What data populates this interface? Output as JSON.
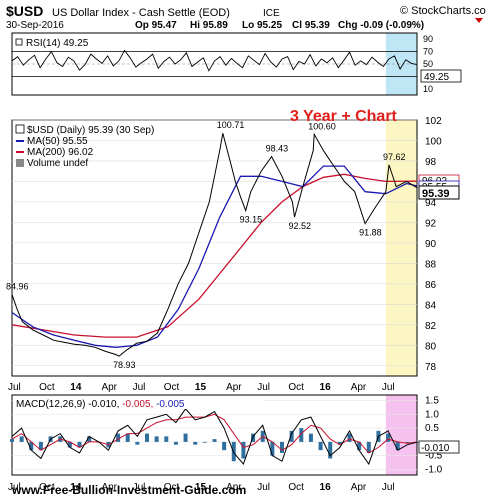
{
  "header": {
    "symbol": "$USD",
    "name": "US Dollar Index - Cash Settle (EOD)",
    "exchange": "ICE",
    "brand": "© StockCharts.com",
    "date": "30-Sep-2016",
    "op": "Op 95.47",
    "hi": "Hi 95.89",
    "lo": "Lo 95.25",
    "cl": "Cl 95.39",
    "chg": "Chg -0.09 (-0.09%)"
  },
  "annotation": "3 Year + Chart",
  "watermark": "www.Free-Bullion-Investment-Guide.com",
  "colors": {
    "price": "#000000",
    "ma50": "#1a1ab0",
    "ma200": "#c8102e",
    "rsi_shade": "#bfe6f5",
    "price_shade": "#fbf6c2",
    "macd_shade": "#f5c2f0",
    "macd_hist": "#2f6f9f",
    "chg_red": "#cc0000"
  },
  "chart_data": [
    {
      "type": "line",
      "panel": "rsi",
      "label": "RSI(14) 49.25",
      "ylim": [
        0,
        100
      ],
      "y_ticks": [
        10,
        30,
        50,
        70,
        90
      ],
      "last_label": "49.25",
      "series": [
        {
          "name": "RSI(14)",
          "values": [
            55,
            62,
            48,
            57,
            64,
            44,
            58,
            70,
            52,
            46,
            61,
            55,
            40,
            49,
            66,
            58,
            51,
            63,
            47,
            55,
            72,
            60,
            45,
            52,
            58,
            66,
            43,
            54,
            61,
            50,
            57,
            68,
            46,
            53,
            60,
            39,
            55,
            62,
            48,
            59,
            51,
            44,
            63,
            56,
            49,
            67,
            53,
            45,
            58,
            62,
            41,
            54,
            50,
            65,
            47,
            58,
            52,
            60,
            44,
            56,
            69,
            48,
            55,
            49,
            61,
            53,
            46,
            58,
            63,
            42,
            57,
            51,
            49
          ]
        }
      ]
    },
    {
      "type": "line",
      "panel": "price",
      "legend": [
        "$USD (Daily) 95.39 (30 Sep)",
        "MA(50) 95.55",
        "MA(200) 96.02",
        "Volume undef"
      ],
      "x_ticks": [
        "Jul",
        "Oct",
        "14",
        "Apr",
        "Jul",
        "Oct",
        "15",
        "Apr",
        "Jul",
        "Oct",
        "16",
        "Apr",
        "Jul"
      ],
      "ylim": [
        77,
        102
      ],
      "y_ticks": [
        78,
        80,
        82,
        84,
        86,
        88,
        90,
        92,
        94,
        96,
        98,
        100,
        102
      ],
      "annotations": [
        {
          "label": "84.96",
          "x": 0,
          "y": 84.96
        },
        {
          "label": "78.93",
          "x": 10.3,
          "y": 78.93
        },
        {
          "label": "100.71",
          "x": 20.3,
          "y": 100.71
        },
        {
          "label": "93.15",
          "x": 22.5,
          "y": 93.15
        },
        {
          "label": "98.43",
          "x": 25,
          "y": 98.43
        },
        {
          "label": "92.52",
          "x": 27.2,
          "y": 92.52
        },
        {
          "label": "100.60",
          "x": 29.1,
          "y": 100.6
        },
        {
          "label": "91.88",
          "x": 34,
          "y": 91.88
        },
        {
          "label": "97.62",
          "x": 36.3,
          "y": 97.62
        }
      ],
      "last_labels": [
        "96.02",
        "95.55",
        "95.39"
      ],
      "series": [
        {
          "name": "$USD",
          "x": [
            0,
            0.5,
            1,
            2,
            3,
            4,
            5,
            6,
            7,
            8,
            9,
            10,
            10.3,
            11,
            12,
            13,
            14,
            15,
            16,
            17,
            18,
            19,
            19.5,
            20,
            20.3,
            21,
            21.5,
            22,
            22.5,
            23,
            24,
            25,
            26,
            27,
            27.2,
            28,
            29,
            29.1,
            30,
            31,
            32,
            33,
            34,
            35,
            36,
            36.3,
            37,
            38,
            39
          ],
          "values": [
            84.96,
            83.5,
            82.3,
            81.5,
            81.0,
            80.5,
            80.3,
            80.1,
            80.0,
            79.8,
            79.4,
            79.1,
            78.93,
            79.5,
            80.2,
            80.4,
            81.2,
            83.5,
            86.0,
            88.0,
            91.0,
            94.0,
            96.5,
            99.0,
            100.71,
            98.0,
            96.0,
            94.5,
            93.15,
            95.0,
            97.0,
            98.43,
            96.5,
            94.0,
            92.52,
            95.5,
            99.0,
            100.6,
            99.0,
            97.5,
            96.0,
            95.0,
            91.88,
            93.5,
            95.0,
            97.62,
            95.5,
            96.0,
            95.39
          ]
        },
        {
          "name": "MA(50)",
          "x": [
            0,
            2,
            4,
            6,
            8,
            10,
            12,
            14,
            16,
            18,
            20,
            22,
            24,
            26,
            28,
            30,
            32,
            34,
            36,
            38,
            39
          ],
          "values": [
            83.2,
            81.8,
            81.0,
            80.5,
            80.0,
            79.8,
            80.0,
            80.8,
            83.5,
            87.5,
            92.5,
            96.5,
            96.5,
            96.0,
            95.5,
            97.5,
            97.5,
            95.0,
            94.8,
            95.8,
            95.55
          ]
        },
        {
          "name": "MA(200)",
          "x": [
            0,
            3,
            6,
            9,
            12,
            15,
            18,
            20,
            22,
            24,
            26,
            28,
            30,
            32,
            34,
            36,
            39
          ],
          "values": [
            82.0,
            81.5,
            81.0,
            80.8,
            80.8,
            81.8,
            84.5,
            87.0,
            89.5,
            92.0,
            94.0,
            95.5,
            96.4,
            96.7,
            96.3,
            96.0,
            96.02
          ]
        }
      ]
    },
    {
      "type": "line",
      "panel": "macd",
      "label": "MACD(12,26,9) -0.010, -0.005, -0.005",
      "label_parts": [
        "MACD(12,26,9)",
        " -0.010,",
        " -0.005,",
        " -0.005"
      ],
      "ylim": [
        -1.2,
        1.7
      ],
      "y_ticks": [
        -1.0,
        -0.5,
        0.0,
        0.5,
        1.0,
        1.5
      ],
      "y_tick_labels": [
        "-1.0",
        "-0.5",
        "",
        "0.5",
        "1.0",
        "1.5"
      ],
      "last_label": "-0.010",
      "series": [
        {
          "name": "MACD",
          "values": [
            0.2,
            0.5,
            -0.3,
            -0.6,
            0.1,
            0.3,
            -0.2,
            -0.4,
            0.2,
            0.0,
            -0.3,
            0.4,
            0.6,
            0.2,
            0.8,
            0.9,
            1.0,
            0.7,
            1.2,
            0.8,
            0.9,
            1.1,
            0.5,
            -0.4,
            -0.8,
            0.2,
            0.6,
            -0.5,
            -0.7,
            0.3,
            0.8,
            0.9,
            0.2,
            -0.5,
            -0.2,
            0.4,
            -0.3,
            -0.8,
            0.2,
            0.4,
            -0.3,
            -0.1,
            -0.01
          ]
        },
        {
          "name": "Signal",
          "values": [
            0.1,
            0.3,
            0.0,
            -0.3,
            -0.1,
            0.1,
            0.0,
            -0.2,
            0.0,
            0.0,
            -0.1,
            0.1,
            0.3,
            0.3,
            0.5,
            0.7,
            0.8,
            0.8,
            0.9,
            0.9,
            0.9,
            1.0,
            0.8,
            0.3,
            -0.2,
            -0.1,
            0.2,
            0.0,
            -0.3,
            -0.1,
            0.3,
            0.6,
            0.5,
            0.1,
            -0.1,
            0.1,
            0.0,
            -0.4,
            -0.2,
            0.1,
            0.0,
            -0.05,
            -0.005
          ]
        }
      ]
    }
  ]
}
